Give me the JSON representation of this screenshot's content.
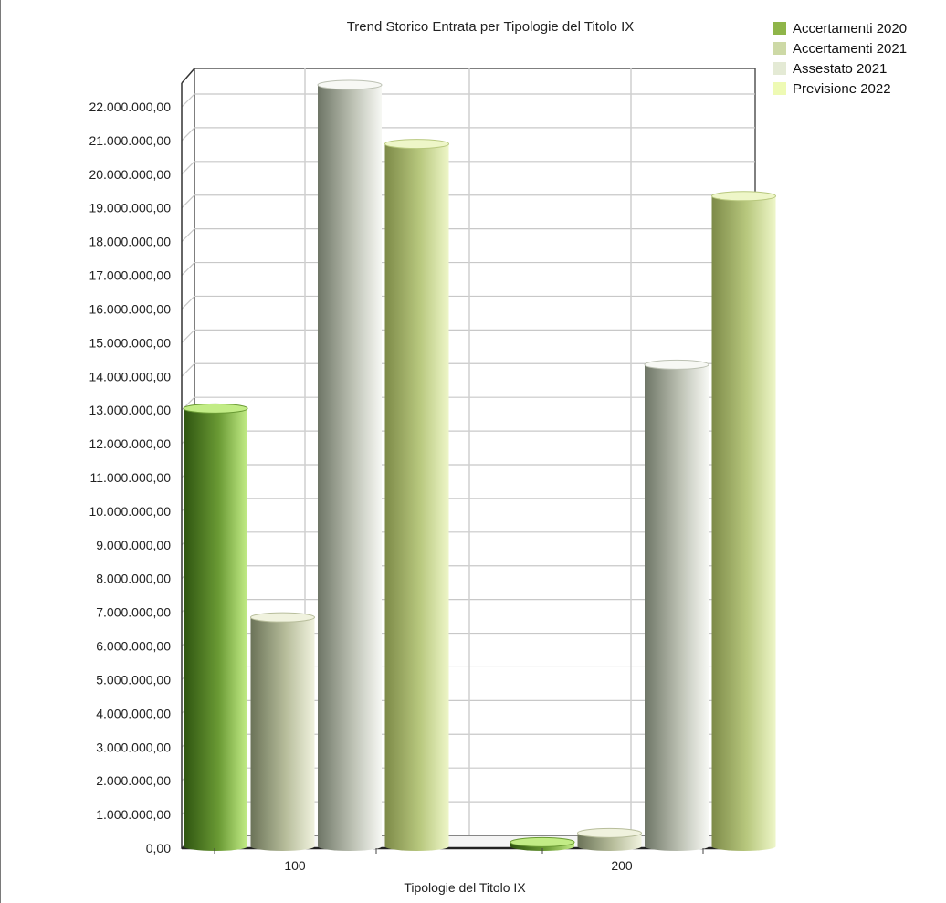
{
  "chart_data": {
    "type": "bar",
    "title": "Trend Storico Entrata per Tipologie del Titolo IX",
    "xlabel": "Tipologie del Titolo IX",
    "ylabel": "",
    "categories": [
      "100",
      "200"
    ],
    "series": [
      {
        "name": "Accertamenti 2020",
        "values": [
          13050000,
          180000
        ],
        "color": "#8fb549"
      },
      {
        "name": "Accertamenti 2021",
        "values": [
          6850000,
          450000
        ],
        "color": "#cdd9a6"
      },
      {
        "name": "Assestato 2021",
        "values": [
          22650000,
          14350000
        ],
        "color": "#e4ead5"
      },
      {
        "name": "Previsione 2022",
        "values": [
          20900000,
          19350000
        ],
        "color": "#eefab4"
      }
    ],
    "ylim": [
      0,
      22000000
    ],
    "yticks": [
      "0,00",
      "1.000.000,00",
      "2.000.000,00",
      "3.000.000,00",
      "4.000.000,00",
      "5.000.000,00",
      "6.000.000,00",
      "7.000.000,00",
      "8.000.000,00",
      "9.000.000,00",
      "10.000.000,00",
      "11.000.000,00",
      "12.000.000,00",
      "13.000.000,00",
      "14.000.000,00",
      "15.000.000,00",
      "16.000.000,00",
      "17.000.000,00",
      "18.000.000,00",
      "19.000.000,00",
      "20.000.000,00",
      "21.000.000,00",
      "22.000.000,00"
    ],
    "grid": true,
    "legend_position": "top-right"
  }
}
